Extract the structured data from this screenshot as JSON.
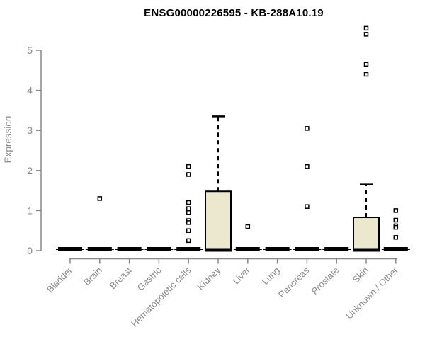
{
  "chart_data": {
    "type": "boxplot",
    "title": "ENSG00000226595 - KB-288A10.19",
    "xlabel": "",
    "ylabel": "Expression",
    "ylim": [
      0,
      5
    ],
    "yticks": [
      0,
      1,
      2,
      3,
      4,
      5
    ],
    "grid": false,
    "legend": false,
    "box_fill_color": "#ece8cd",
    "box_stroke_color": "#000000",
    "axis_color": "#888888",
    "axis_text_color": "#8a8a8a",
    "categories": [
      "Bladder",
      "Brain",
      "Breast",
      "Gastric",
      "Hematopoietic cells",
      "Kidney",
      "Liver",
      "Lung",
      "Pancreas",
      "Prostate",
      "Skin",
      "Unknown / Other"
    ],
    "boxes": [
      {
        "category": "Bladder",
        "median": 0,
        "q1": 0,
        "q3": 0,
        "whisker_low": 0,
        "whisker_high": 0,
        "outliers": []
      },
      {
        "category": "Brain",
        "median": 0,
        "q1": 0,
        "q3": 0,
        "whisker_low": 0,
        "whisker_high": 0,
        "outliers": [
          1.3
        ]
      },
      {
        "category": "Breast",
        "median": 0,
        "q1": 0,
        "q3": 0,
        "whisker_low": 0,
        "whisker_high": 0,
        "outliers": []
      },
      {
        "category": "Gastric",
        "median": 0,
        "q1": 0,
        "q3": 0,
        "whisker_low": 0,
        "whisker_high": 0,
        "outliers": []
      },
      {
        "category": "Hematopoietic cells",
        "median": 0,
        "q1": 0,
        "q3": 0,
        "whisker_low": 0,
        "whisker_high": 0,
        "outliers": [
          2.1,
          1.9,
          1.2,
          1.05,
          0.95,
          0.75,
          0.7,
          0.5,
          0.25
        ]
      },
      {
        "category": "Kidney",
        "median": 0,
        "q1": 0,
        "q3": 1.48,
        "whisker_low": 0,
        "whisker_high": 3.35,
        "outliers": []
      },
      {
        "category": "Liver",
        "median": 0,
        "q1": 0,
        "q3": 0,
        "whisker_low": 0,
        "whisker_high": 0,
        "outliers": [
          0.6
        ]
      },
      {
        "category": "Lung",
        "median": 0,
        "q1": 0,
        "q3": 0,
        "whisker_low": 0,
        "whisker_high": 0,
        "outliers": []
      },
      {
        "category": "Pancreas",
        "median": 0,
        "q1": 0,
        "q3": 0,
        "whisker_low": 0,
        "whisker_high": 0,
        "outliers": [
          3.05,
          2.1,
          1.1
        ]
      },
      {
        "category": "Prostate",
        "median": 0,
        "q1": 0,
        "q3": 0,
        "whisker_low": 0,
        "whisker_high": 0,
        "outliers": []
      },
      {
        "category": "Skin",
        "median": 0,
        "q1": 0,
        "q3": 0.83,
        "whisker_low": 0,
        "whisker_high": 1.65,
        "outliers": [
          5.55,
          5.4,
          4.65,
          4.4
        ]
      },
      {
        "category": "Unknown / Other",
        "median": 0,
        "q1": 0,
        "q3": 0,
        "whisker_low": 0,
        "whisker_high": 0,
        "outliers": [
          1.0,
          0.76,
          0.62,
          0.58,
          0.33
        ]
      }
    ]
  }
}
